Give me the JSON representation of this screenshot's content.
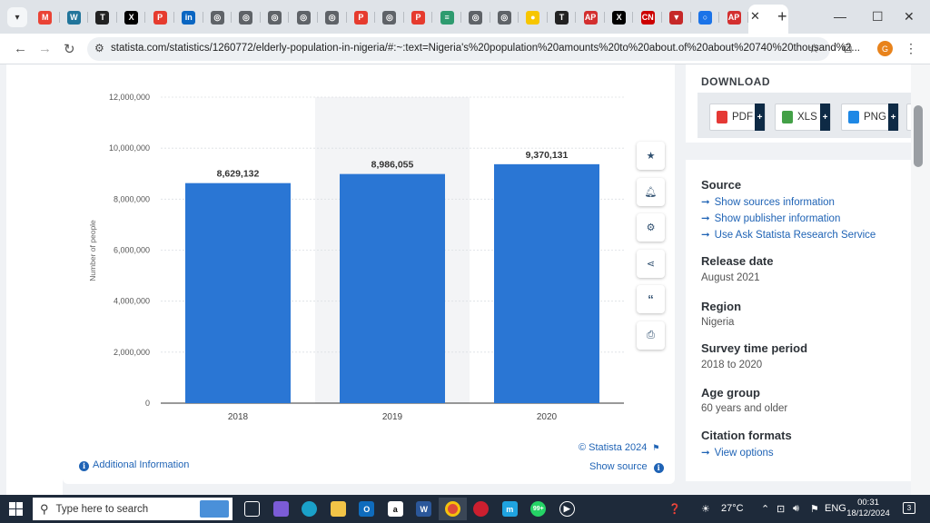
{
  "browser": {
    "url": "statista.com/statistics/1260772/elderly-population-in-nigeria/#:~:text=Nigeria's%20population%20amounts%20to%20about.of%20about%20740%20thousand%2...",
    "profile_initial": "G",
    "tabs": [
      {
        "icon": "chevron-down-icon"
      },
      {
        "icon": "gmail-icon",
        "color": "#ea4335",
        "glyph": "M"
      },
      {
        "icon": "wordpress-icon",
        "color": "#21759b",
        "glyph": "W"
      },
      {
        "icon": "times-icon",
        "color": "#222222",
        "glyph": "T"
      },
      {
        "icon": "x-icon",
        "color": "#000000",
        "glyph": "X"
      },
      {
        "icon": "punch-icon",
        "color": "#e63b2e",
        "glyph": "P"
      },
      {
        "icon": "linkedin-icon",
        "color": "#0a66c2",
        "glyph": "in"
      },
      {
        "icon": "globe-icon",
        "color": "#5f6368",
        "glyph": "◎"
      },
      {
        "icon": "globe-icon",
        "color": "#5f6368",
        "glyph": "◎"
      },
      {
        "icon": "globe-icon",
        "color": "#5f6368",
        "glyph": "◎"
      },
      {
        "icon": "globe-icon",
        "color": "#5f6368",
        "glyph": "◎"
      },
      {
        "icon": "globe-icon",
        "color": "#5f6368",
        "glyph": "◎"
      },
      {
        "icon": "punch-icon",
        "color": "#e63b2e",
        "glyph": "P"
      },
      {
        "icon": "globe-icon",
        "color": "#5f6368",
        "glyph": "◎"
      },
      {
        "icon": "punch-icon",
        "color": "#e63b2e",
        "glyph": "P"
      },
      {
        "icon": "news-icon",
        "color": "#2e9b6f",
        "glyph": "≡"
      },
      {
        "icon": "globe-icon",
        "color": "#5f6368",
        "glyph": "◎"
      },
      {
        "icon": "globe-icon",
        "color": "#5f6368",
        "glyph": "◎"
      },
      {
        "icon": "shell-icon",
        "color": "#f7c600",
        "glyph": "●"
      },
      {
        "icon": "times-icon",
        "color": "#222222",
        "glyph": "T"
      },
      {
        "icon": "ap-icon",
        "color": "#d32f2f",
        "glyph": "AP"
      },
      {
        "icon": "x-icon",
        "color": "#000000",
        "glyph": "X"
      },
      {
        "icon": "cnn-icon",
        "color": "#cc0000",
        "glyph": "CN"
      },
      {
        "icon": "bird-icon",
        "color": "#c62828",
        "glyph": "▼"
      },
      {
        "icon": "circle-icon",
        "color": "#1a73e8",
        "glyph": "○"
      },
      {
        "icon": "ap-icon",
        "color": "#d32f2f",
        "glyph": "AP"
      }
    ]
  },
  "chart_data": {
    "type": "bar",
    "categories": [
      "2018",
      "2019",
      "2020"
    ],
    "values": [
      8629132,
      8986055,
      9370131
    ],
    "value_labels": [
      "8,629,132",
      "8,986,055",
      "9,370,131"
    ],
    "ylabel": "Number of people",
    "xlabel": "",
    "ylim": [
      0,
      12000000
    ],
    "yticks": [
      0,
      2000000,
      4000000,
      6000000,
      8000000,
      10000000,
      12000000
    ],
    "ytick_labels": [
      "0",
      "2,000,000",
      "4,000,000",
      "6,000,000",
      "8,000,000",
      "10,000,000",
      "12,000,000"
    ],
    "bar_color": "#2a76d4",
    "highlight_category": "2019",
    "grid": true
  },
  "chart_footer": {
    "copyright": "© Statista 2024",
    "show_source": "Show source",
    "additional_info": "Additional Information"
  },
  "chart_tools": [
    "star-icon",
    "bell-icon",
    "gear-icon",
    "share-icon",
    "quote-icon",
    "print-icon"
  ],
  "download": {
    "title": "DOWNLOAD",
    "buttons": [
      {
        "label": "PDF",
        "color": "#e53935"
      },
      {
        "label": "XLS",
        "color": "#43a047"
      },
      {
        "label": "PNG",
        "color": "#1e88e5"
      }
    ]
  },
  "info": {
    "source_title": "Source",
    "source_links": [
      "Show sources information",
      "Show publisher information",
      "Use Ask Statista Research Service"
    ],
    "release_title": "Release date",
    "release_value": "August 2021",
    "region_title": "Region",
    "region_value": "Nigeria",
    "survey_title": "Survey time period",
    "survey_value": "2018 to 2020",
    "age_title": "Age group",
    "age_value": "60 years and older",
    "citation_title": "Citation formats",
    "citation_link": "View options"
  },
  "taskbar": {
    "search_placeholder": "Type here to search",
    "weather": "27°C",
    "lang": "ENG",
    "time": "00:31",
    "date": "18/12/2024",
    "notifications": "3",
    "badge": "99+"
  }
}
